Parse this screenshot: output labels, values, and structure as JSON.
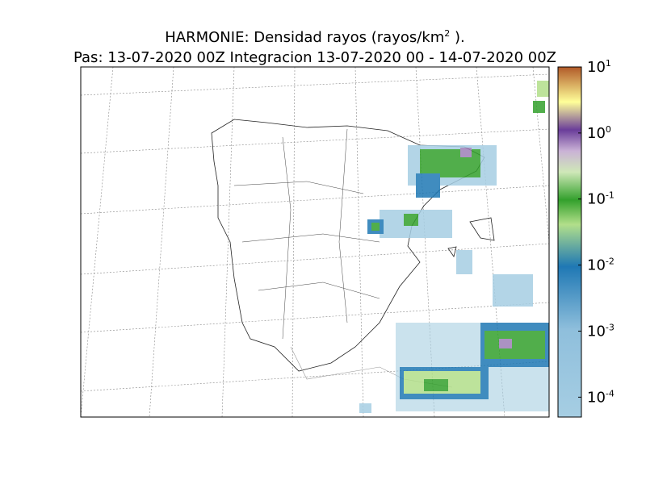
{
  "title": {
    "text": "HARMONIE: Densidad rayos  (rayos/km",
    "superscript": "2",
    "suffix": " )."
  },
  "subtitle": "Pas: 13-07-2020 00Z Integracion 13-07-2020 00 - 14-07-2020 00Z",
  "colorbar": {
    "scale": "log",
    "lim": [
      5e-05,
      10
    ],
    "ticks": [
      {
        "value": 0.0001,
        "base": "10",
        "exponent": "-4"
      },
      {
        "value": 0.001,
        "base": "10",
        "exponent": "-3"
      },
      {
        "value": 0.01,
        "base": "10",
        "exponent": "-2"
      },
      {
        "value": 0.1,
        "base": "10",
        "exponent": "-1"
      },
      {
        "value": 1,
        "base": "10",
        "exponent": "0"
      },
      {
        "value": 10,
        "base": "10",
        "exponent": "1"
      }
    ]
  }
}
